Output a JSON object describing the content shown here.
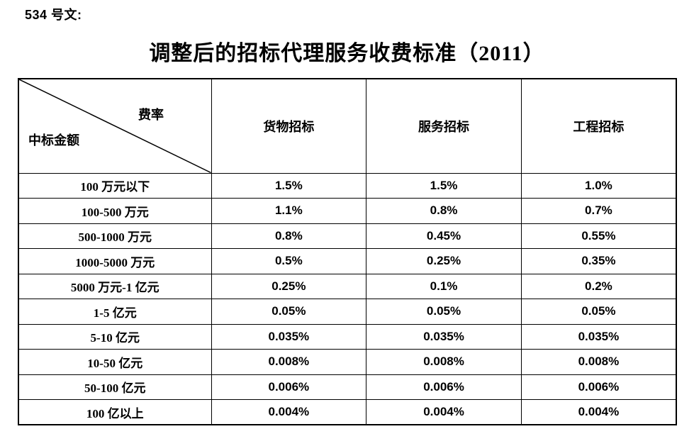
{
  "doc_number": "534 号文:",
  "title": "调整后的招标代理服务收费标准（2011）",
  "table": {
    "corner": {
      "top_label": "费率",
      "bottom_label": "中标金额"
    },
    "columns": [
      "货物招标",
      "服务招标",
      "工程招标"
    ],
    "rows": [
      {
        "label": "100 万元以下",
        "values": [
          "1.5%",
          "1.5%",
          "1.0%"
        ]
      },
      {
        "label": "100-500 万元",
        "values": [
          "1.1%",
          "0.8%",
          "0.7%"
        ]
      },
      {
        "label": "500-1000 万元",
        "values": [
          "0.8%",
          "0.45%",
          "0.55%"
        ]
      },
      {
        "label": "1000-5000 万元",
        "values": [
          "0.5%",
          "0.25%",
          "0.35%"
        ]
      },
      {
        "label": "5000 万元-1 亿元",
        "values": [
          "0.25%",
          "0.1%",
          "0.2%"
        ]
      },
      {
        "label": "1-5 亿元",
        "values": [
          "0.05%",
          "0.05%",
          "0.05%"
        ]
      },
      {
        "label": "5-10 亿元",
        "values": [
          "0.035%",
          "0.035%",
          "0.035%"
        ]
      },
      {
        "label": "10-50 亿元",
        "values": [
          "0.008%",
          "0.008%",
          "0.008%"
        ]
      },
      {
        "label": "50-100 亿元",
        "values": [
          "0.006%",
          "0.006%",
          "0.006%"
        ]
      },
      {
        "label": "100 亿以上",
        "values": [
          "0.004%",
          "0.004%",
          "0.004%"
        ]
      }
    ]
  },
  "colors": {
    "text": "#000000",
    "background": "#ffffff",
    "border": "#000000"
  }
}
